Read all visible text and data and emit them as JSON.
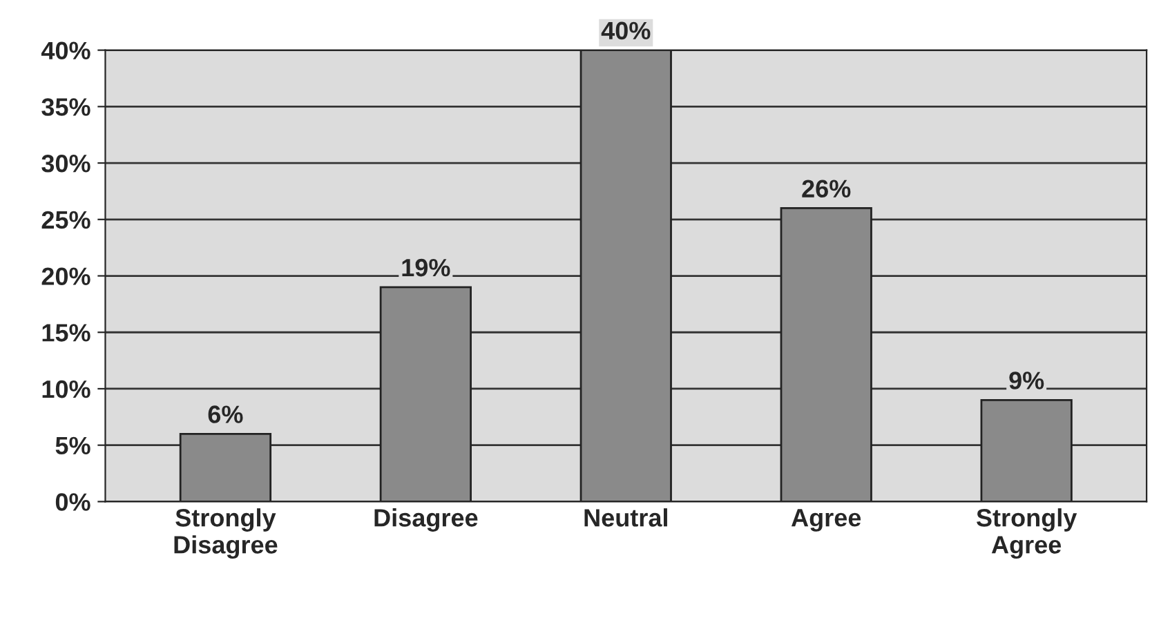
{
  "chart_data": {
    "type": "bar",
    "categories": [
      "Strongly\nDisagree",
      "Disagree",
      "Neutral",
      "Agree",
      "Strongly\nAgree"
    ],
    "values": [
      6,
      19,
      40,
      26,
      9
    ],
    "value_labels": [
      "6%",
      "19%",
      "40%",
      "26%",
      "9%"
    ],
    "color": "#8a8a8a",
    "ylim": [
      0,
      40
    ],
    "yticks": [
      {
        "value": 0,
        "label": "0%"
      },
      {
        "value": 5,
        "label": "5%"
      },
      {
        "value": 10,
        "label": "10%"
      },
      {
        "value": 15,
        "label": "15%"
      },
      {
        "value": 20,
        "label": "20%"
      },
      {
        "value": 25,
        "label": "25%"
      },
      {
        "value": 30,
        "label": "30%"
      },
      {
        "value": 35,
        "label": "35%"
      },
      {
        "value": 40,
        "label": "40%"
      }
    ],
    "grid": "y"
  }
}
